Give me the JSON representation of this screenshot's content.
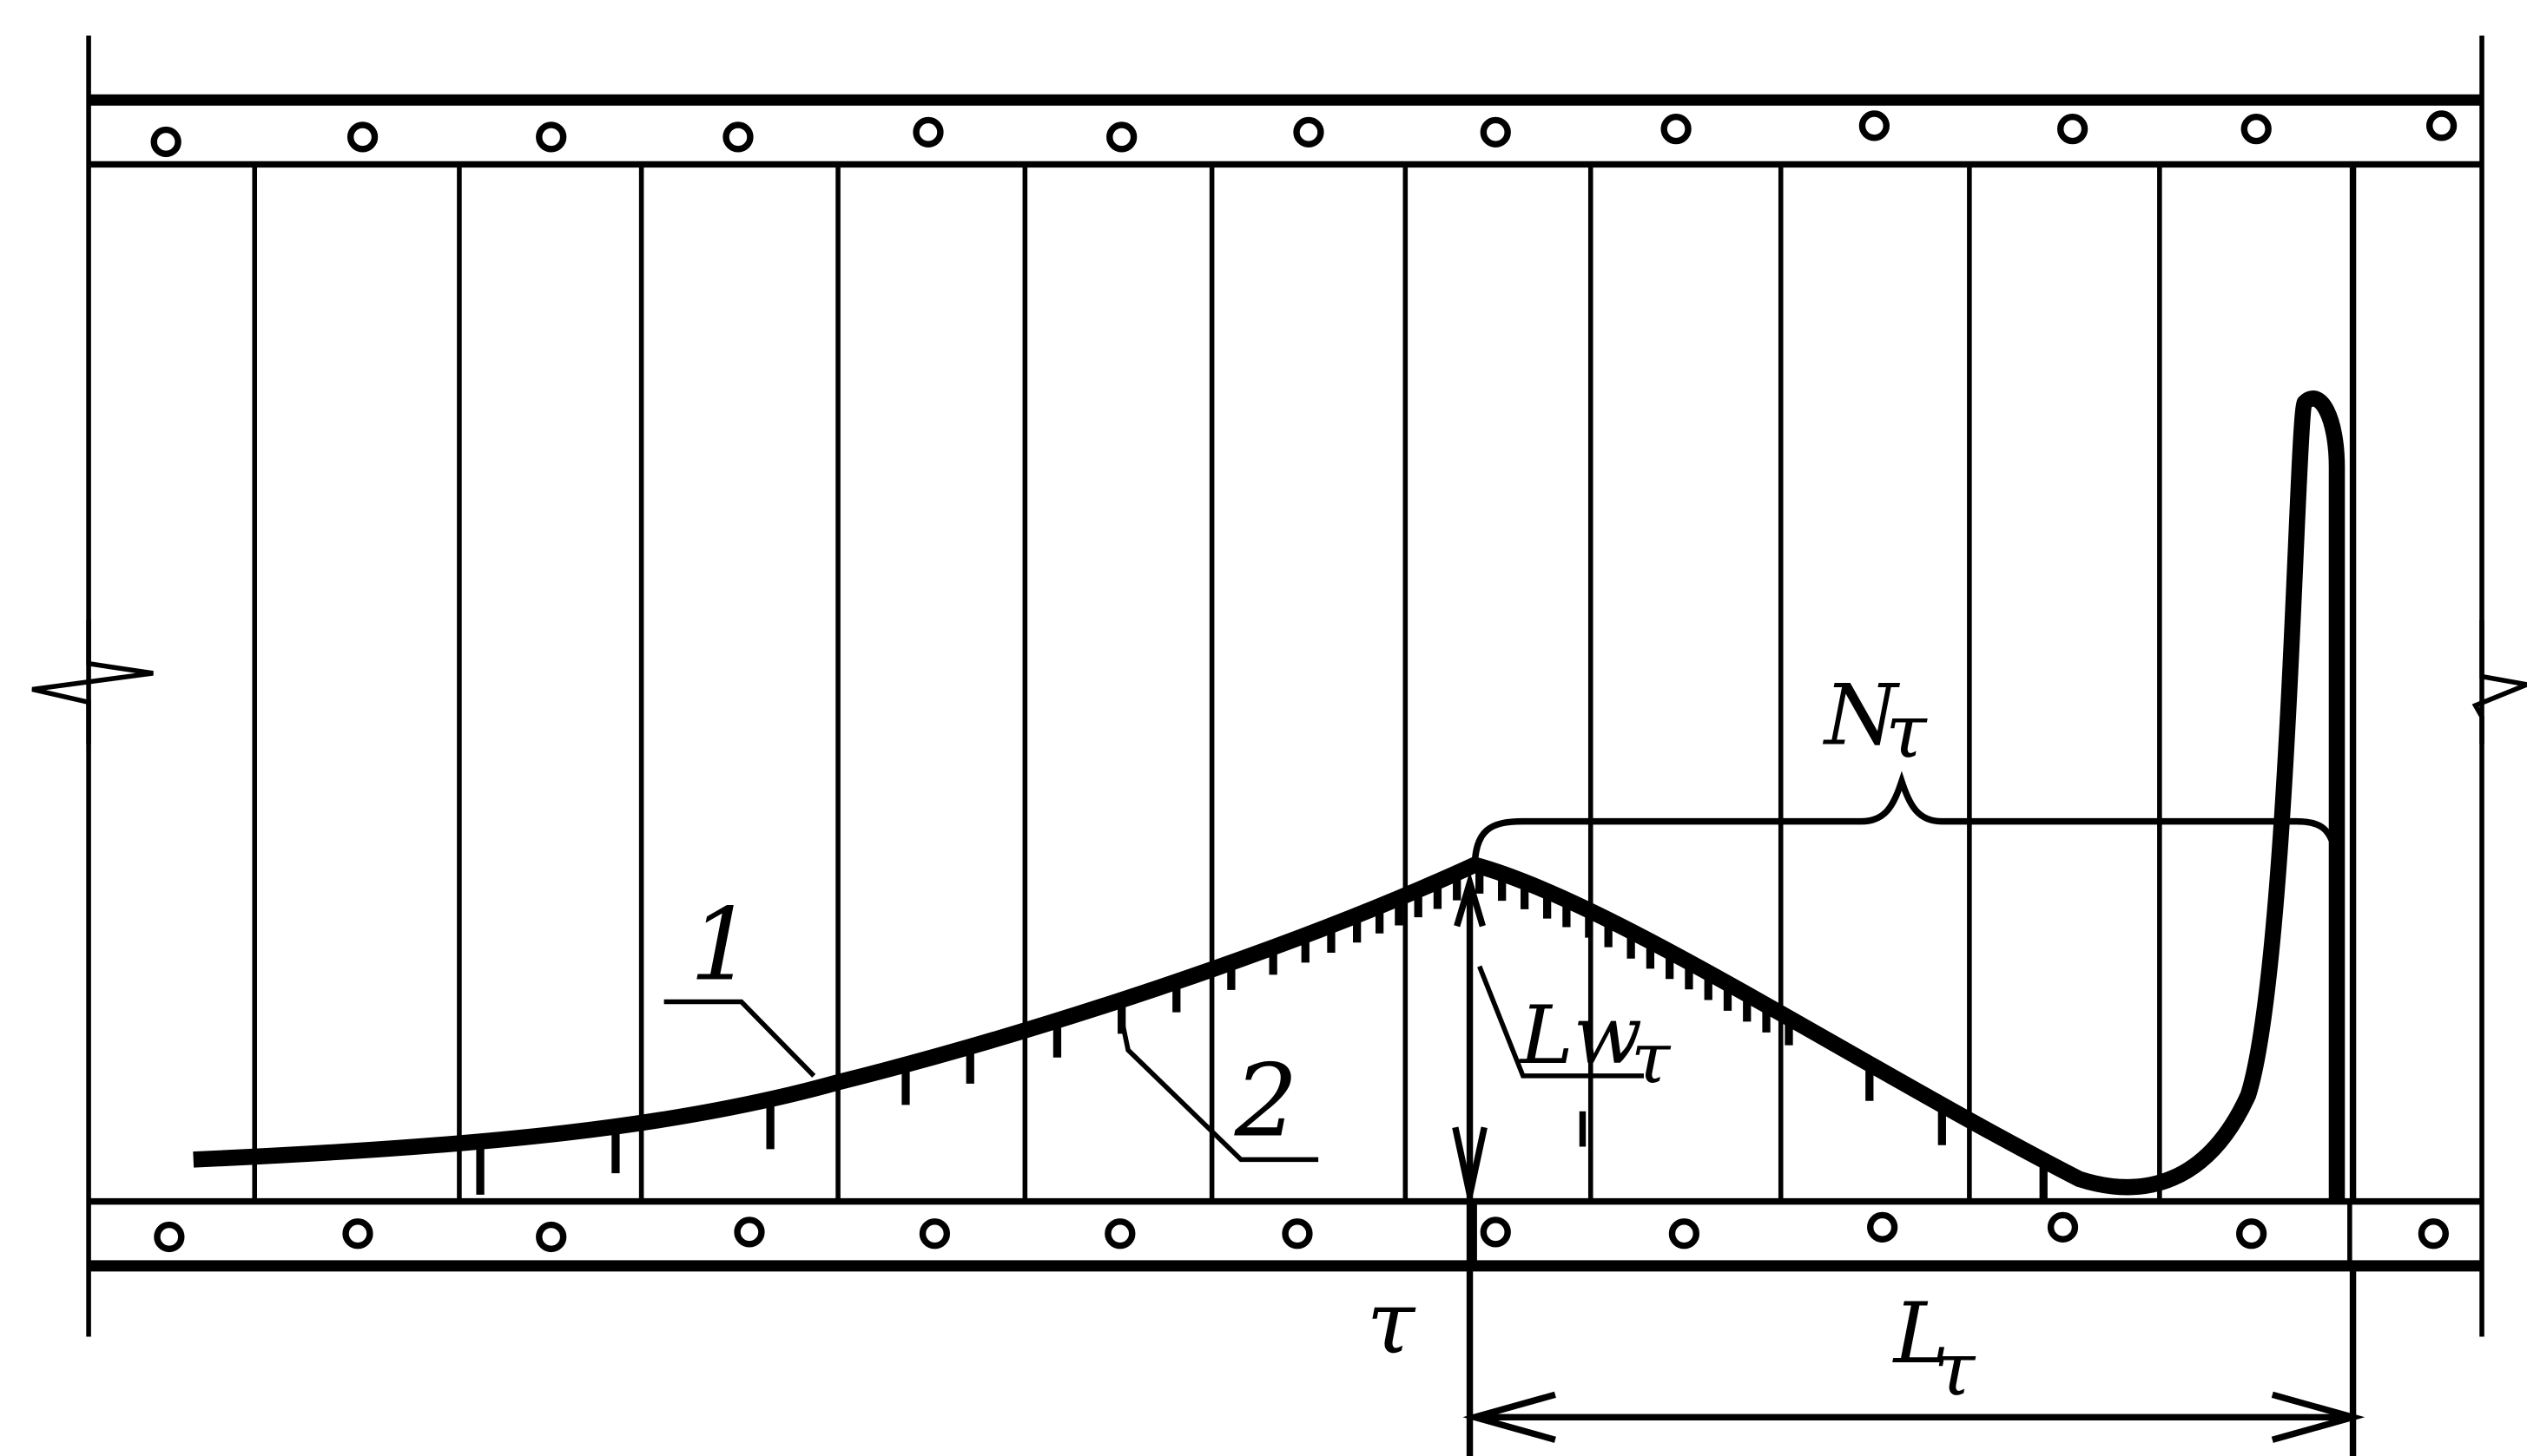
{
  "diagram": {
    "labels": {
      "curve_1": "1",
      "ticks_2": "2",
      "n_tau": "N",
      "n_tau_sub": "τ",
      "lw_tau": "Lw",
      "lw_tau_sub": "τ",
      "tau": "τ",
      "l_tau": "L",
      "l_tau_sub": "τ"
    },
    "line_color": "#000000",
    "background": "#ffffff"
  }
}
